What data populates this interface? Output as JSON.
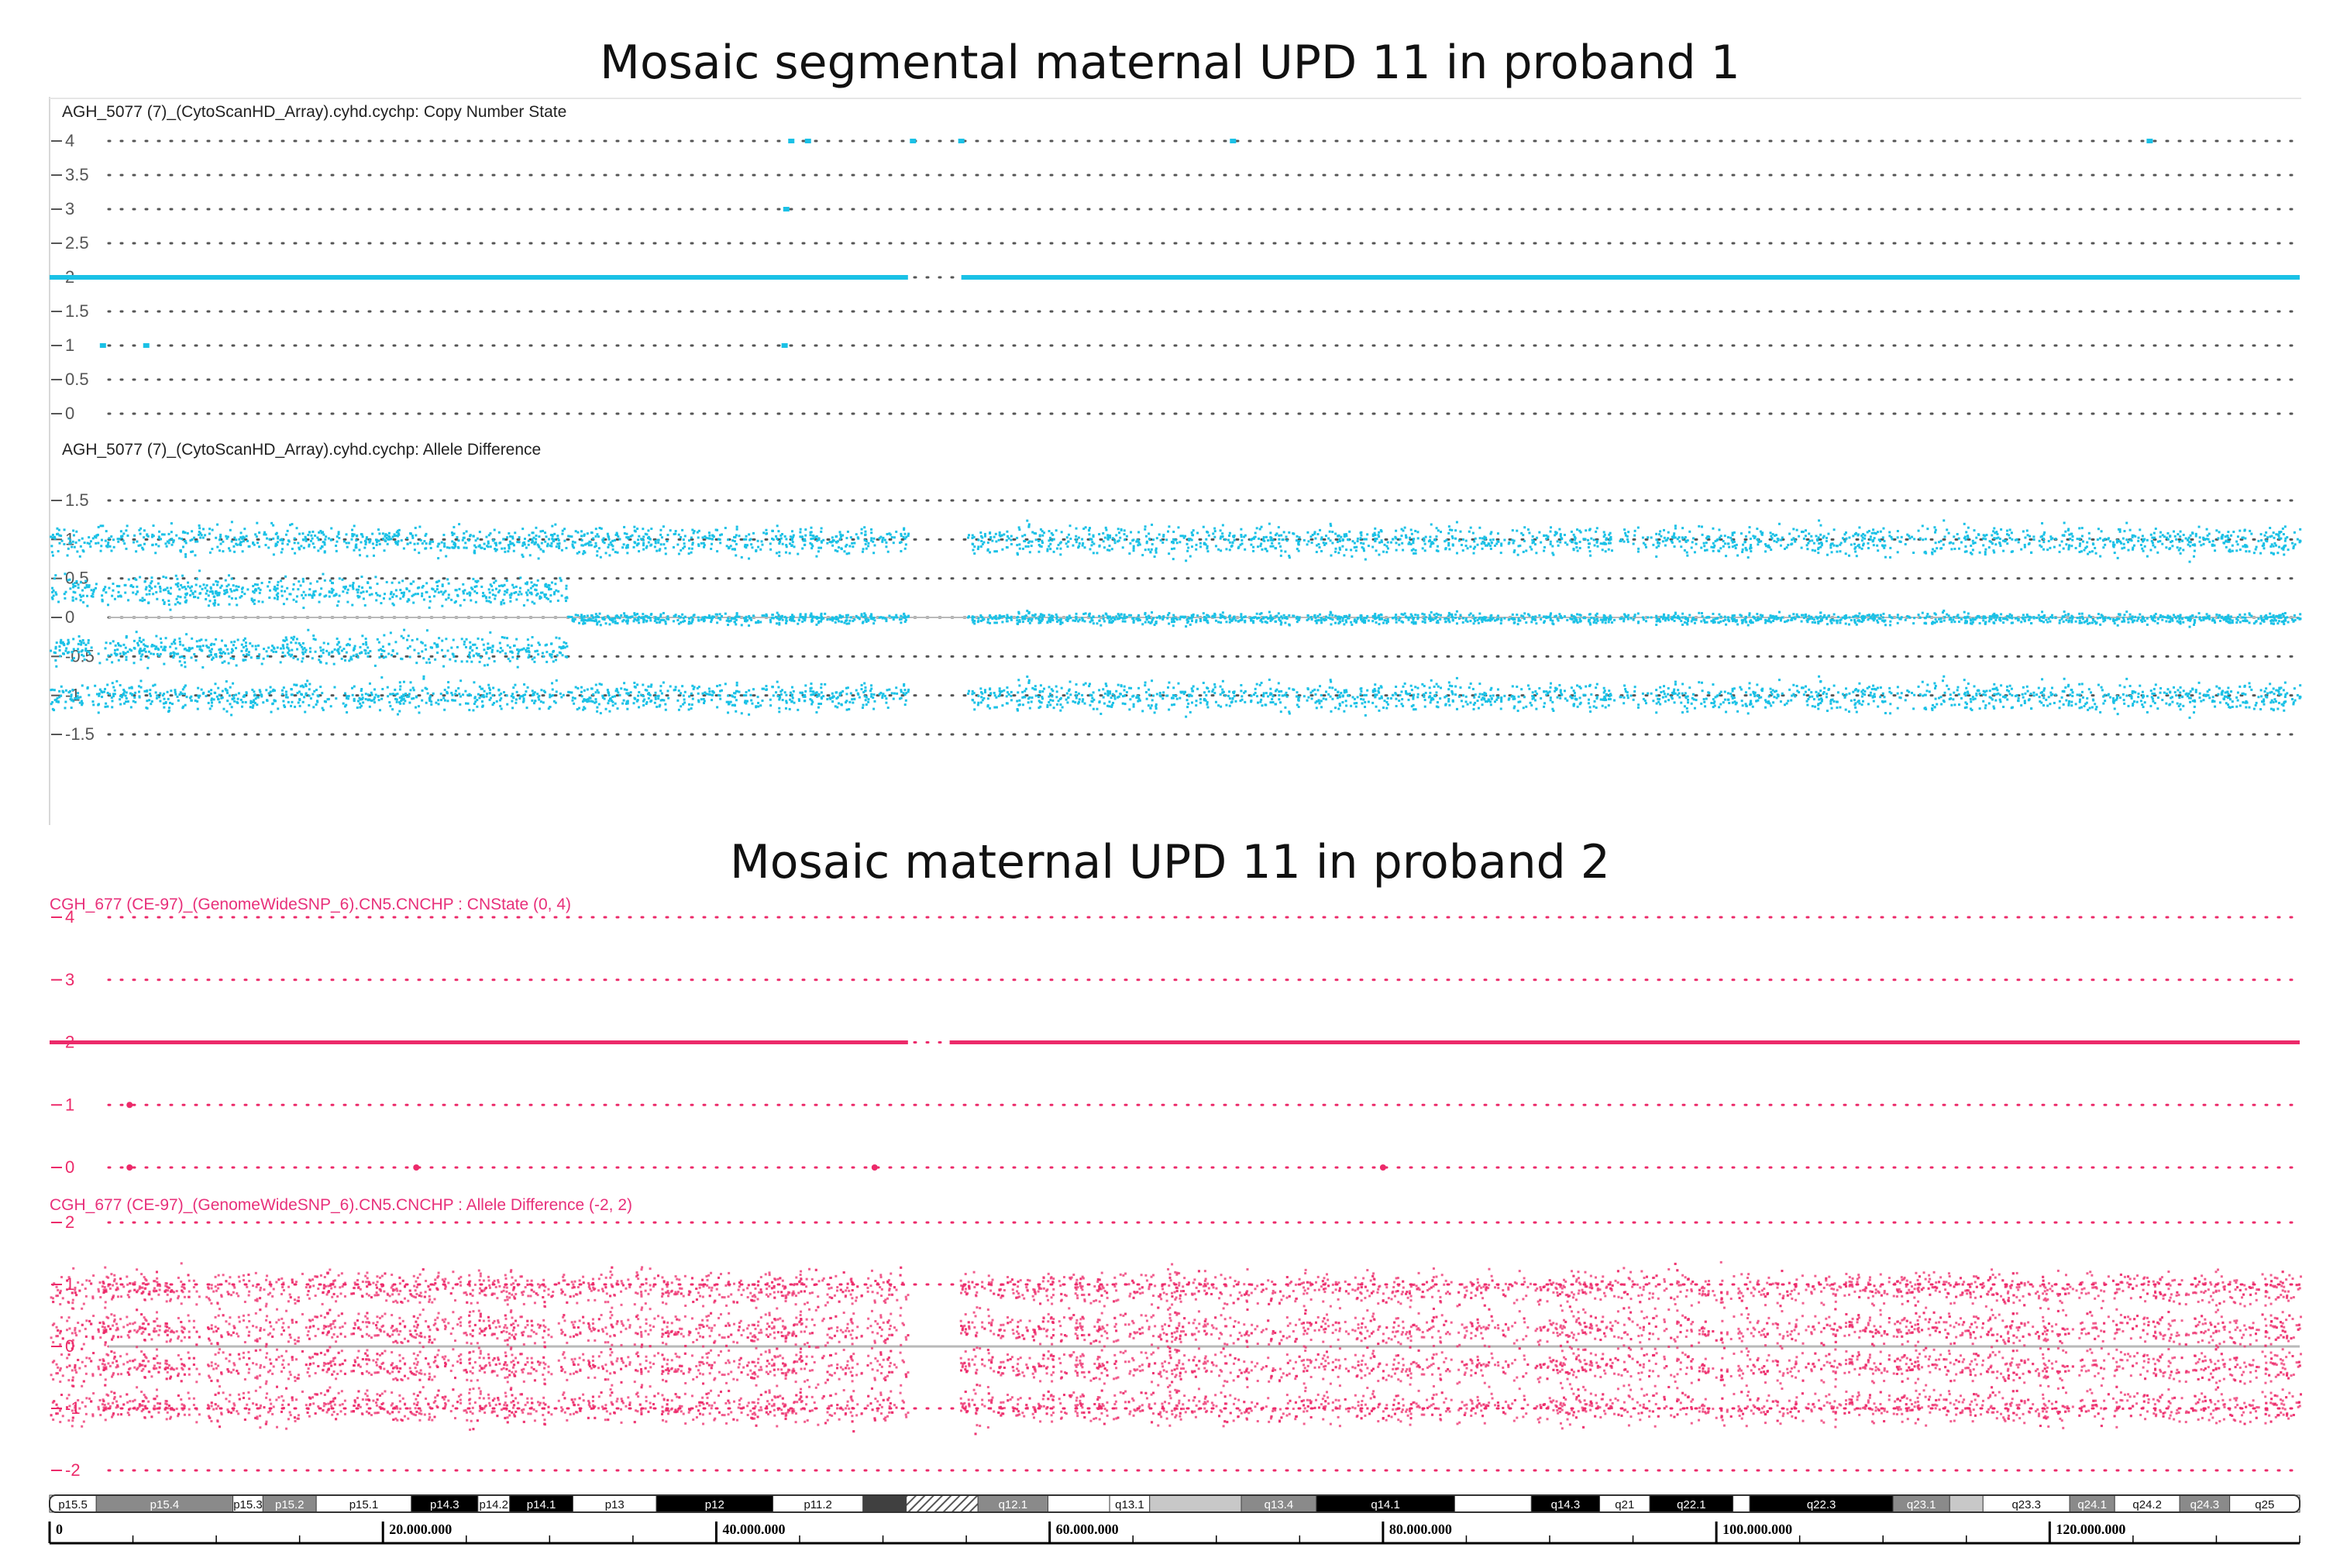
{
  "figure": {
    "title1": "Mosaic segmental maternal UPD 11 in proband 1",
    "title2": "Mosaic maternal UPD 11 in proband 2"
  },
  "colors": {
    "proband1": "#1ac1e6",
    "proband2": "#ec2a6a",
    "baseline": "#b9b9b9"
  },
  "chart_data": [
    {
      "type": "scatter",
      "name": "proband1_copy_number",
      "title": "AGH_5077 (7)_(CytoScanHD_Array).cyhd.cychp: Copy Number State",
      "ylim": [
        0,
        4
      ],
      "ticks": [
        {
          "label": "4",
          "v": 4
        },
        {
          "label": "3.5",
          "v": 3.5
        },
        {
          "label": "3",
          "v": 3
        },
        {
          "label": "2.5",
          "v": 2.5
        },
        {
          "label": "2",
          "v": 2
        },
        {
          "label": "1.5",
          "v": 1.5
        },
        {
          "label": "1",
          "v": 1
        },
        {
          "label": "0.5",
          "v": 0.5
        },
        {
          "label": "0",
          "v": 0
        }
      ],
      "xlim": [
        0,
        135000000
      ],
      "segments": [
        {
          "start": 0,
          "end": 51500000,
          "value": 2
        },
        {
          "start": 54700000,
          "end": 135000000,
          "value": 2
        }
      ],
      "outliers": [
        {
          "x": 44500000,
          "y": 4
        },
        {
          "x": 45500000,
          "y": 4
        },
        {
          "x": 51800000,
          "y": 4
        },
        {
          "x": 54700000,
          "y": 4
        },
        {
          "x": 71000000,
          "y": 4
        },
        {
          "x": 126000000,
          "y": 4
        },
        {
          "x": 44200000,
          "y": 3
        },
        {
          "x": 3200000,
          "y": 1
        },
        {
          "x": 5800000,
          "y": 1
        },
        {
          "x": 44100000,
          "y": 1
        }
      ]
    },
    {
      "type": "scatter",
      "name": "proband1_allele_difference",
      "title": "AGH_5077 (7)_(CytoScanHD_Array).cyhd.cychp: Allele Difference",
      "ylim": [
        -1.5,
        1.5
      ],
      "ticks": [
        {
          "label": "1.5",
          "v": 1.5
        },
        {
          "label": "1",
          "v": 1
        },
        {
          "label": "0.5",
          "v": 0.5
        },
        {
          "label": "0",
          "v": 0
        },
        {
          "label": "-0.5",
          "v": -0.5
        },
        {
          "label": "-1",
          "v": -1
        },
        {
          "label": "-1.5",
          "v": -1.5
        }
      ],
      "xlim": [
        0,
        135000000
      ],
      "gap": [
        51500000,
        55000000
      ],
      "segments": [
        {
          "start": 0,
          "end": 31000000,
          "bands": [
            1.0,
            0.35,
            -0.4,
            -1.0
          ]
        },
        {
          "start": 31000000,
          "end": 135000000,
          "bands": [
            1.0,
            0.0,
            -1.0
          ]
        }
      ]
    },
    {
      "type": "scatter",
      "name": "proband2_cn_state",
      "title": "CGH_677 (CE-97)_(GenomeWideSNP_6).CN5.CNCHP : CNState (0, 4)",
      "ylim": [
        0,
        4
      ],
      "ticks": [
        {
          "label": "4",
          "v": 4
        },
        {
          "label": "3",
          "v": 3
        },
        {
          "label": "2",
          "v": 2
        },
        {
          "label": "1",
          "v": 1
        },
        {
          "label": "0",
          "v": 0
        }
      ],
      "xlim": [
        0,
        135000000
      ],
      "segments": [
        {
          "start": 0,
          "end": 51500000,
          "value": 2
        },
        {
          "start": 54000000,
          "end": 135000000,
          "value": 2
        }
      ],
      "outliers": [
        {
          "x": 4800000,
          "y": 1
        },
        {
          "x": 4800000,
          "y": 0
        },
        {
          "x": 22000000,
          "y": 0
        },
        {
          "x": 49500000,
          "y": 0
        },
        {
          "x": 80000000,
          "y": 0
        }
      ]
    },
    {
      "type": "scatter",
      "name": "proband2_allele_difference",
      "title": "CGH_677 (CE-97)_(GenomeWideSNP_6).CN5.CNCHP : Allele Difference (-2, 2)",
      "ylim": [
        -2,
        2
      ],
      "ticks": [
        {
          "label": "2",
          "v": 2
        },
        {
          "label": "1",
          "v": 1
        },
        {
          "label": "0",
          "v": 0
        },
        {
          "label": "-1",
          "v": -1
        },
        {
          "label": "-2",
          "v": -2
        }
      ],
      "xlim": [
        0,
        135000000
      ],
      "gap": [
        51500000,
        54500000
      ],
      "bands": [
        0.95,
        0.3,
        -0.3,
        -0.95
      ]
    }
  ],
  "ideogram": {
    "bands": [
      {
        "label": "p15.5",
        "start": 0,
        "end": 2800000,
        "shade": "white"
      },
      {
        "label": "p15.4",
        "start": 2800000,
        "end": 11000000,
        "shade": "gray"
      },
      {
        "label": "p15.3",
        "start": 11000000,
        "end": 12800000,
        "shade": "white"
      },
      {
        "label": "p15.2",
        "start": 12800000,
        "end": 16000000,
        "shade": "gray"
      },
      {
        "label": "p15.1",
        "start": 16000000,
        "end": 21700000,
        "shade": "white"
      },
      {
        "label": "p14.3",
        "start": 21700000,
        "end": 25700000,
        "shade": "black"
      },
      {
        "label": "p14.2",
        "start": 25700000,
        "end": 27600000,
        "shade": "white"
      },
      {
        "label": "p14.1",
        "start": 27600000,
        "end": 31400000,
        "shade": "black"
      },
      {
        "label": "p13",
        "start": 31400000,
        "end": 36400000,
        "shade": "white"
      },
      {
        "label": "p12",
        "start": 36400000,
        "end": 43400000,
        "shade": "black"
      },
      {
        "label": "p11.2",
        "start": 43400000,
        "end": 48800000,
        "shade": "white"
      },
      {
        "label": "",
        "start": 48800000,
        "end": 51400000,
        "shade": "dark"
      },
      {
        "label": "",
        "start": 51400000,
        "end": 55700000,
        "shade": "hatch"
      },
      {
        "label": "q12.1",
        "start": 55700000,
        "end": 59900000,
        "shade": "gray"
      },
      {
        "label": "",
        "start": 59900000,
        "end": 63600000,
        "shade": "white"
      },
      {
        "label": "q13.1",
        "start": 63600000,
        "end": 66000000,
        "shade": "white"
      },
      {
        "label": "",
        "start": 66000000,
        "end": 71500000,
        "shade": "light"
      },
      {
        "label": "q13.4",
        "start": 71500000,
        "end": 76000000,
        "shade": "gray"
      },
      {
        "label": "q14.1",
        "start": 76000000,
        "end": 84300000,
        "shade": "black"
      },
      {
        "label": "",
        "start": 84300000,
        "end": 88900000,
        "shade": "white"
      },
      {
        "label": "q14.3",
        "start": 88900000,
        "end": 93000000,
        "shade": "black"
      },
      {
        "label": "q21",
        "start": 93000000,
        "end": 96000000,
        "shade": "white"
      },
      {
        "label": "q22.1",
        "start": 96000000,
        "end": 101000000,
        "shade": "black"
      },
      {
        "label": "",
        "start": 101000000,
        "end": 102000000,
        "shade": "white"
      },
      {
        "label": "q22.3",
        "start": 102000000,
        "end": 110600000,
        "shade": "black"
      },
      {
        "label": "q23.1",
        "start": 110600000,
        "end": 114000000,
        "shade": "gray"
      },
      {
        "label": "",
        "start": 114000000,
        "end": 116000000,
        "shade": "light"
      },
      {
        "label": "q23.3",
        "start": 116000000,
        "end": 121200000,
        "shade": "white"
      },
      {
        "label": "q24.1",
        "start": 121200000,
        "end": 123900000,
        "shade": "gray"
      },
      {
        "label": "q24.2",
        "start": 123900000,
        "end": 127800000,
        "shade": "white"
      },
      {
        "label": "q24.3",
        "start": 127800000,
        "end": 130800000,
        "shade": "gray"
      },
      {
        "label": "q25",
        "start": 130800000,
        "end": 135000000,
        "shade": "white"
      }
    ],
    "axis_ticks": [
      {
        "label": "0",
        "pos": 0
      },
      {
        "label": "20.000.000",
        "pos": 20000000
      },
      {
        "label": "40.000.000",
        "pos": 40000000
      },
      {
        "label": "60.000.000",
        "pos": 60000000
      },
      {
        "label": "80.000.000",
        "pos": 80000000
      },
      {
        "label": "100.000.000",
        "pos": 100000000
      },
      {
        "label": "120.000.000",
        "pos": 120000000
      }
    ]
  }
}
